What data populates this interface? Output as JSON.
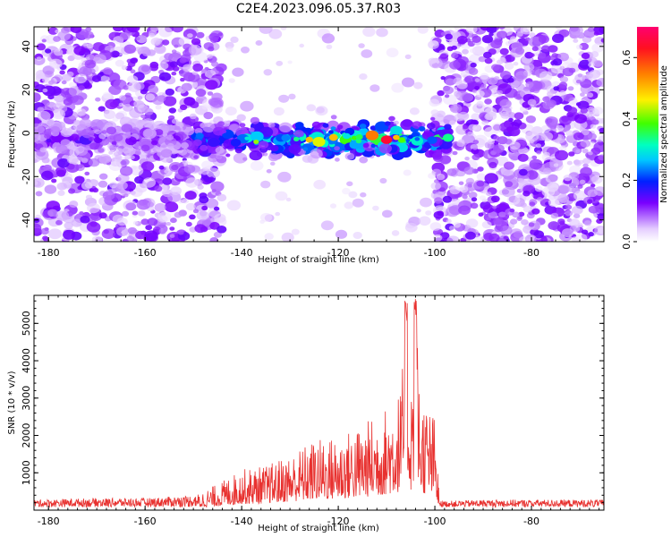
{
  "title": "C2E4.2023.096.05.37.R03",
  "chart_data": [
    {
      "type": "heatmap",
      "xlabel": "Height of straight line (km)",
      "ylabel": "Frequency (Hz)",
      "xlim": [
        -183,
        -65
      ],
      "ylim": [
        -50,
        49
      ],
      "xticks": [
        -180,
        -160,
        -140,
        -120,
        -100,
        -80
      ],
      "yticks": [
        -40,
        -20,
        0,
        20,
        40
      ],
      "colorbar": {
        "label": "Normalized spectral amplitude",
        "range": [
          0,
          0.7
        ],
        "ticks": [
          0.0,
          0.2,
          0.4,
          0.6
        ]
      },
      "description_regions": {
        "noisy_left_x": [
          -183,
          -144
        ],
        "signal_band_x": [
          -155,
          -98
        ],
        "signal_band_y": [
          -8,
          3
        ],
        "noisy_right_x": [
          -100,
          -65
        ],
        "peak_x": -110,
        "peak_amplitude": 0.65
      }
    },
    {
      "type": "line",
      "xlabel": "Height of straight line (km)",
      "ylabel": "SNR (10 * v/v)",
      "xlim": [
        -183,
        -65
      ],
      "ylim": [
        0,
        5750
      ],
      "xticks": [
        -180,
        -160,
        -140,
        -120,
        -100,
        -80
      ],
      "yticks": [
        1000,
        2000,
        3000,
        4000,
        5000
      ],
      "color": "#e8312f",
      "envelope": [
        {
          "x": -183,
          "y": 250
        },
        {
          "x": -170,
          "y": 300
        },
        {
          "x": -160,
          "y": 300
        },
        {
          "x": -150,
          "y": 400
        },
        {
          "x": -145,
          "y": 700
        },
        {
          "x": -140,
          "y": 1100
        },
        {
          "x": -135,
          "y": 1200
        },
        {
          "x": -130,
          "y": 1500
        },
        {
          "x": -125,
          "y": 1900
        },
        {
          "x": -120,
          "y": 2000
        },
        {
          "x": -115,
          "y": 2300
        },
        {
          "x": -110,
          "y": 2800
        },
        {
          "x": -107,
          "y": 3300
        },
        {
          "x": -106,
          "y": 5600
        },
        {
          "x": -105,
          "y": 3500
        },
        {
          "x": -104,
          "y": 5700
        },
        {
          "x": -103,
          "y": 3200
        },
        {
          "x": -100,
          "y": 2500
        },
        {
          "x": -99,
          "y": 200
        },
        {
          "x": -90,
          "y": 250
        },
        {
          "x": -80,
          "y": 250
        },
        {
          "x": -65,
          "y": 250
        }
      ]
    }
  ]
}
